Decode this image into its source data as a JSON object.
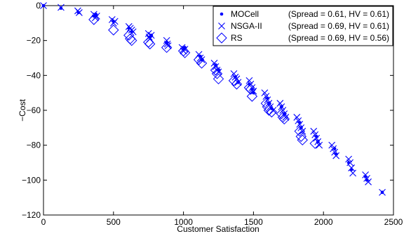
{
  "chart_data": {
    "type": "scatter",
    "title": "",
    "xlabel": "Customer Satisfaction",
    "ylabel": "−Cost",
    "xlim": [
      0,
      2500
    ],
    "ylim": [
      -120,
      0
    ],
    "xticks": [
      0,
      500,
      1000,
      1500,
      2000,
      2500
    ],
    "xtick_labels": [
      "0",
      "500",
      "1000",
      "1500",
      "2000",
      "2500"
    ],
    "yticks": [
      0,
      -20,
      -40,
      -60,
      -80,
      -100,
      -120
    ],
    "ytick_labels": [
      "0",
      "−20",
      "−40",
      "−60",
      "−80",
      "−100",
      "−120"
    ],
    "grid": false,
    "legend_position": "top-right",
    "color": "#0000ff",
    "series": [
      {
        "name": "MOCell",
        "stats": "(Spread = 0.61, HV = 0.61)",
        "marker": "dot",
        "points": [
          [
            0,
            0
          ],
          [
            125,
            -1.5
          ],
          [
            250,
            -4
          ],
          [
            360,
            -6
          ],
          [
            375,
            -5
          ],
          [
            500,
            -9
          ],
          [
            610,
            -13
          ],
          [
            630,
            -15
          ],
          [
            760,
            -18
          ],
          [
            770,
            -17
          ],
          [
            880,
            -21
          ],
          [
            1000,
            -25
          ],
          [
            1010,
            -24
          ],
          [
            1120,
            -29
          ],
          [
            1130,
            -31
          ],
          [
            1230,
            -34
          ],
          [
            1250,
            -37
          ],
          [
            1370,
            -41
          ],
          [
            1390,
            -44
          ],
          [
            1470,
            -45
          ],
          [
            1490,
            -48
          ],
          [
            1500,
            -50
          ],
          [
            1600,
            -53
          ],
          [
            1610,
            -56
          ],
          [
            1630,
            -59
          ],
          [
            1700,
            -58
          ],
          [
            1720,
            -62
          ],
          [
            1830,
            -67
          ],
          [
            1840,
            -70
          ],
          [
            1950,
            -75
          ],
          [
            1960,
            -78
          ],
          [
            2080,
            -82
          ],
          [
            2090,
            -85
          ],
          [
            2180,
            -90
          ],
          [
            2200,
            -94
          ],
          [
            2300,
            -98
          ],
          [
            2310,
            -100
          ],
          [
            2420,
            -107
          ]
        ]
      },
      {
        "name": "NSGA-II",
        "stats": "(Spread = 0.69, HV = 0.61)",
        "marker": "x",
        "points": [
          [
            0,
            0
          ],
          [
            125,
            -1
          ],
          [
            245,
            -3
          ],
          [
            255,
            -4
          ],
          [
            360,
            -5
          ],
          [
            370,
            -7
          ],
          [
            380,
            -6
          ],
          [
            490,
            -8
          ],
          [
            500,
            -10
          ],
          [
            510,
            -9
          ],
          [
            610,
            -12
          ],
          [
            620,
            -13
          ],
          [
            630,
            -14
          ],
          [
            640,
            -15
          ],
          [
            750,
            -16
          ],
          [
            755,
            -18
          ],
          [
            760,
            -19
          ],
          [
            770,
            -17
          ],
          [
            880,
            -20
          ],
          [
            885,
            -22
          ],
          [
            890,
            -23
          ],
          [
            990,
            -24
          ],
          [
            1000,
            -26
          ],
          [
            1010,
            -25
          ],
          [
            1110,
            -28
          ],
          [
            1120,
            -30
          ],
          [
            1130,
            -31
          ],
          [
            1220,
            -33
          ],
          [
            1230,
            -35
          ],
          [
            1240,
            -37
          ],
          [
            1250,
            -38
          ],
          [
            1360,
            -39
          ],
          [
            1370,
            -41
          ],
          [
            1380,
            -42
          ],
          [
            1390,
            -44
          ],
          [
            1470,
            -43
          ],
          [
            1480,
            -45
          ],
          [
            1490,
            -47
          ],
          [
            1500,
            -49
          ],
          [
            1580,
            -50
          ],
          [
            1590,
            -52
          ],
          [
            1600,
            -54
          ],
          [
            1610,
            -56
          ],
          [
            1620,
            -58
          ],
          [
            1640,
            -60
          ],
          [
            1690,
            -56
          ],
          [
            1700,
            -58
          ],
          [
            1710,
            -60
          ],
          [
            1720,
            -62
          ],
          [
            1730,
            -64
          ],
          [
            1810,
            -64
          ],
          [
            1820,
            -66
          ],
          [
            1830,
            -68
          ],
          [
            1840,
            -70
          ],
          [
            1850,
            -72
          ],
          [
            1930,
            -72
          ],
          [
            1940,
            -74
          ],
          [
            1950,
            -76
          ],
          [
            1960,
            -78
          ],
          [
            1970,
            -80
          ],
          [
            2060,
            -80
          ],
          [
            2070,
            -82
          ],
          [
            2080,
            -84
          ],
          [
            2090,
            -86
          ],
          [
            2180,
            -88
          ],
          [
            2190,
            -90
          ],
          [
            2200,
            -93
          ],
          [
            2210,
            -96
          ],
          [
            2300,
            -97
          ],
          [
            2310,
            -99
          ],
          [
            2320,
            -101
          ],
          [
            2420,
            -107
          ]
        ]
      },
      {
        "name": "RS",
        "stats": "(Spread = 0.69, HV = 0.56)",
        "marker": "diamond",
        "points": [
          [
            360,
            -8
          ],
          [
            500,
            -14
          ],
          [
            610,
            -17
          ],
          [
            620,
            -19
          ],
          [
            630,
            -20
          ],
          [
            750,
            -21
          ],
          [
            760,
            -22
          ],
          [
            880,
            -24
          ],
          [
            1000,
            -26
          ],
          [
            1010,
            -27
          ],
          [
            1110,
            -31
          ],
          [
            1130,
            -33
          ],
          [
            1230,
            -37
          ],
          [
            1240,
            -39
          ],
          [
            1250,
            -42
          ],
          [
            1360,
            -43
          ],
          [
            1380,
            -45
          ],
          [
            1470,
            -47
          ],
          [
            1480,
            -48
          ],
          [
            1490,
            -52
          ],
          [
            1590,
            -56
          ],
          [
            1600,
            -58
          ],
          [
            1610,
            -60
          ],
          [
            1630,
            -61
          ],
          [
            1700,
            -62
          ],
          [
            1710,
            -64
          ],
          [
            1720,
            -65
          ],
          [
            1830,
            -72
          ],
          [
            1840,
            -75
          ],
          [
            1850,
            -77
          ],
          [
            1940,
            -79
          ]
        ]
      }
    ]
  }
}
